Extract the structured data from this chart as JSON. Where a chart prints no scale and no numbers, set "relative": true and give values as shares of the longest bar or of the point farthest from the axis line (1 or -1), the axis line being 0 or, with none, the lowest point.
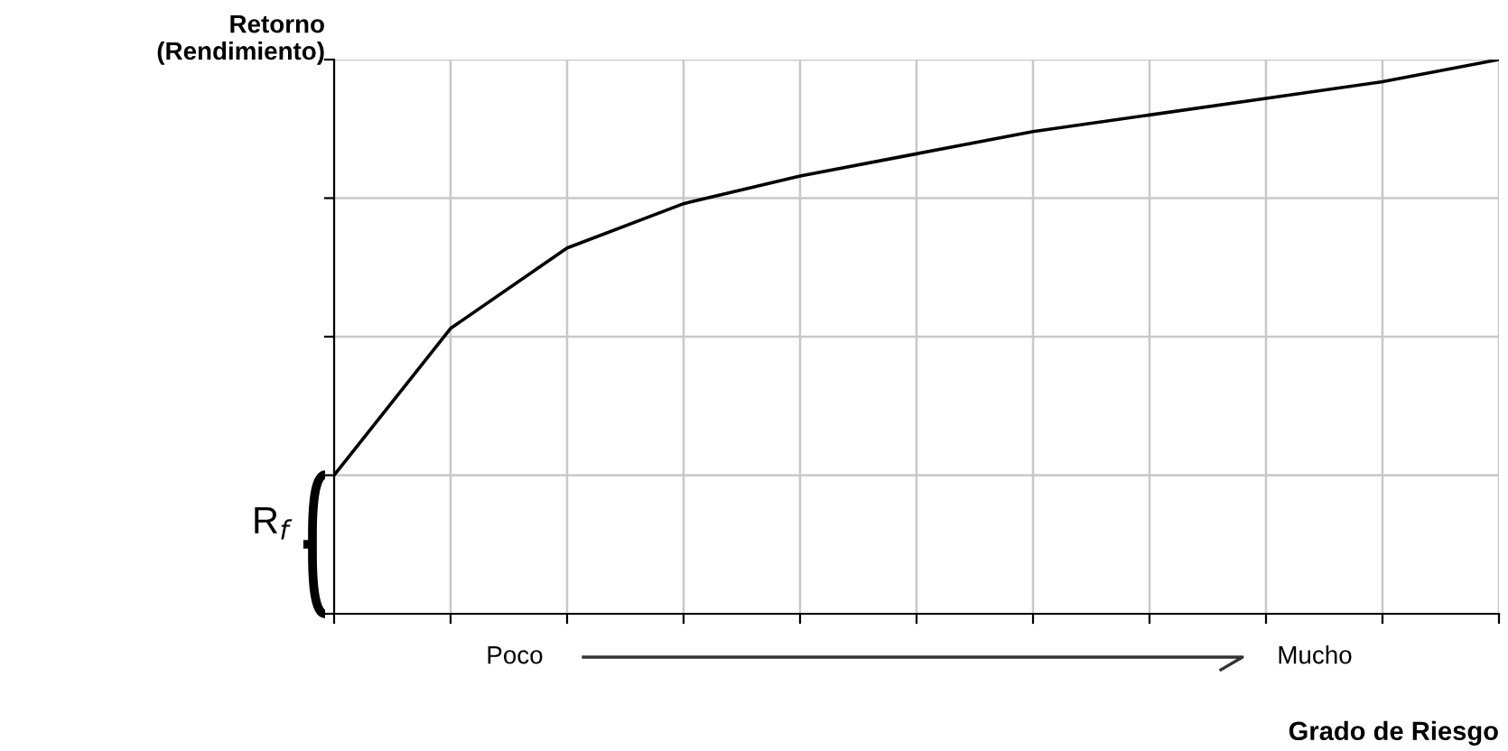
{
  "chart_data": {
    "type": "line",
    "ylabel": "Retorno\n(Rendimiento)",
    "xlabel": "Grado de Riesgo",
    "categories": [
      null,
      null,
      null,
      null,
      null,
      null,
      null,
      null,
      null,
      null,
      null
    ],
    "relative": true,
    "grid": true,
    "marker": "none",
    "line_style": "solid",
    "series": [
      {
        "color": "#000000",
        "values": [
          0.25,
          0.515,
          0.66,
          0.74,
          0.79,
          0.83,
          0.87,
          0.9,
          0.93,
          0.96,
          1.0
        ]
      }
    ],
    "annotations": [
      "R$_{f}$",
      "Poco",
      "Mucho"
    ]
  }
}
